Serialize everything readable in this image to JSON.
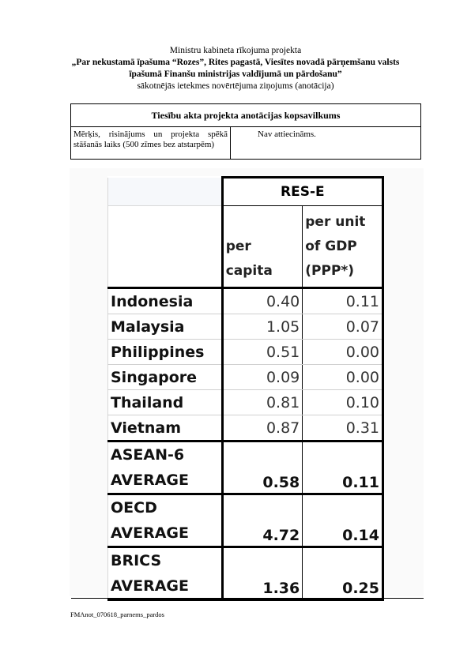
{
  "header": {
    "line1": "Ministru kabineta rīkojuma projekta",
    "line2": "„Par nekustamā īpašuma “Rozes”, Rites pagastā, Viesītes novadā pārņemšanu valsts",
    "line3": "īpašumā Finanšu ministrijas valdījumā un pārdošanu”",
    "line4": "sākotnējās ietekmes novērtējuma ziņojums (anotācija)"
  },
  "summary": {
    "title": "Tiesību akta projekta anotācijas kopsavilkums",
    "row_label": "Mērķis, risinājums un projekta spēkā stāšanās laiks (500 zīmes bez atstarpēm)",
    "row_value": "Nav attiecināms."
  },
  "figure_table": {
    "group_header": "RES-E",
    "col1_line1": "per",
    "col1_line2": "capita",
    "col2_line1": "per unit",
    "col2_line2": "of GDP",
    "col2_line3": "(PPP*)",
    "rows": [
      {
        "name": "Indonesia",
        "per_capita": "0.40",
        "per_gdp": "0.11"
      },
      {
        "name": "Malaysia",
        "per_capita": "1.05",
        "per_gdp": "0.07"
      },
      {
        "name": "Philippines",
        "per_capita": "0.51",
        "per_gdp": "0.00"
      },
      {
        "name": "Singapore",
        "per_capita": "0.09",
        "per_gdp": "0.00"
      },
      {
        "name": "Thailand",
        "per_capita": "0.81",
        "per_gdp": "0.10"
      },
      {
        "name": "Vietnam",
        "per_capita": "0.87",
        "per_gdp": "0.31"
      }
    ],
    "averages": [
      {
        "line1": "ASEAN-6",
        "line2": "AVERAGE",
        "per_capita": "0.58",
        "per_gdp": "0.11"
      },
      {
        "line1": "OECD",
        "line2": "AVERAGE",
        "per_capita": "4.72",
        "per_gdp": "0.14"
      },
      {
        "line1": "BRICS",
        "line2": "AVERAGE",
        "per_capita": "1.36",
        "per_gdp": "0.25"
      }
    ]
  },
  "footer": {
    "filename": "FMAnot_070618_parnems_pardos"
  }
}
